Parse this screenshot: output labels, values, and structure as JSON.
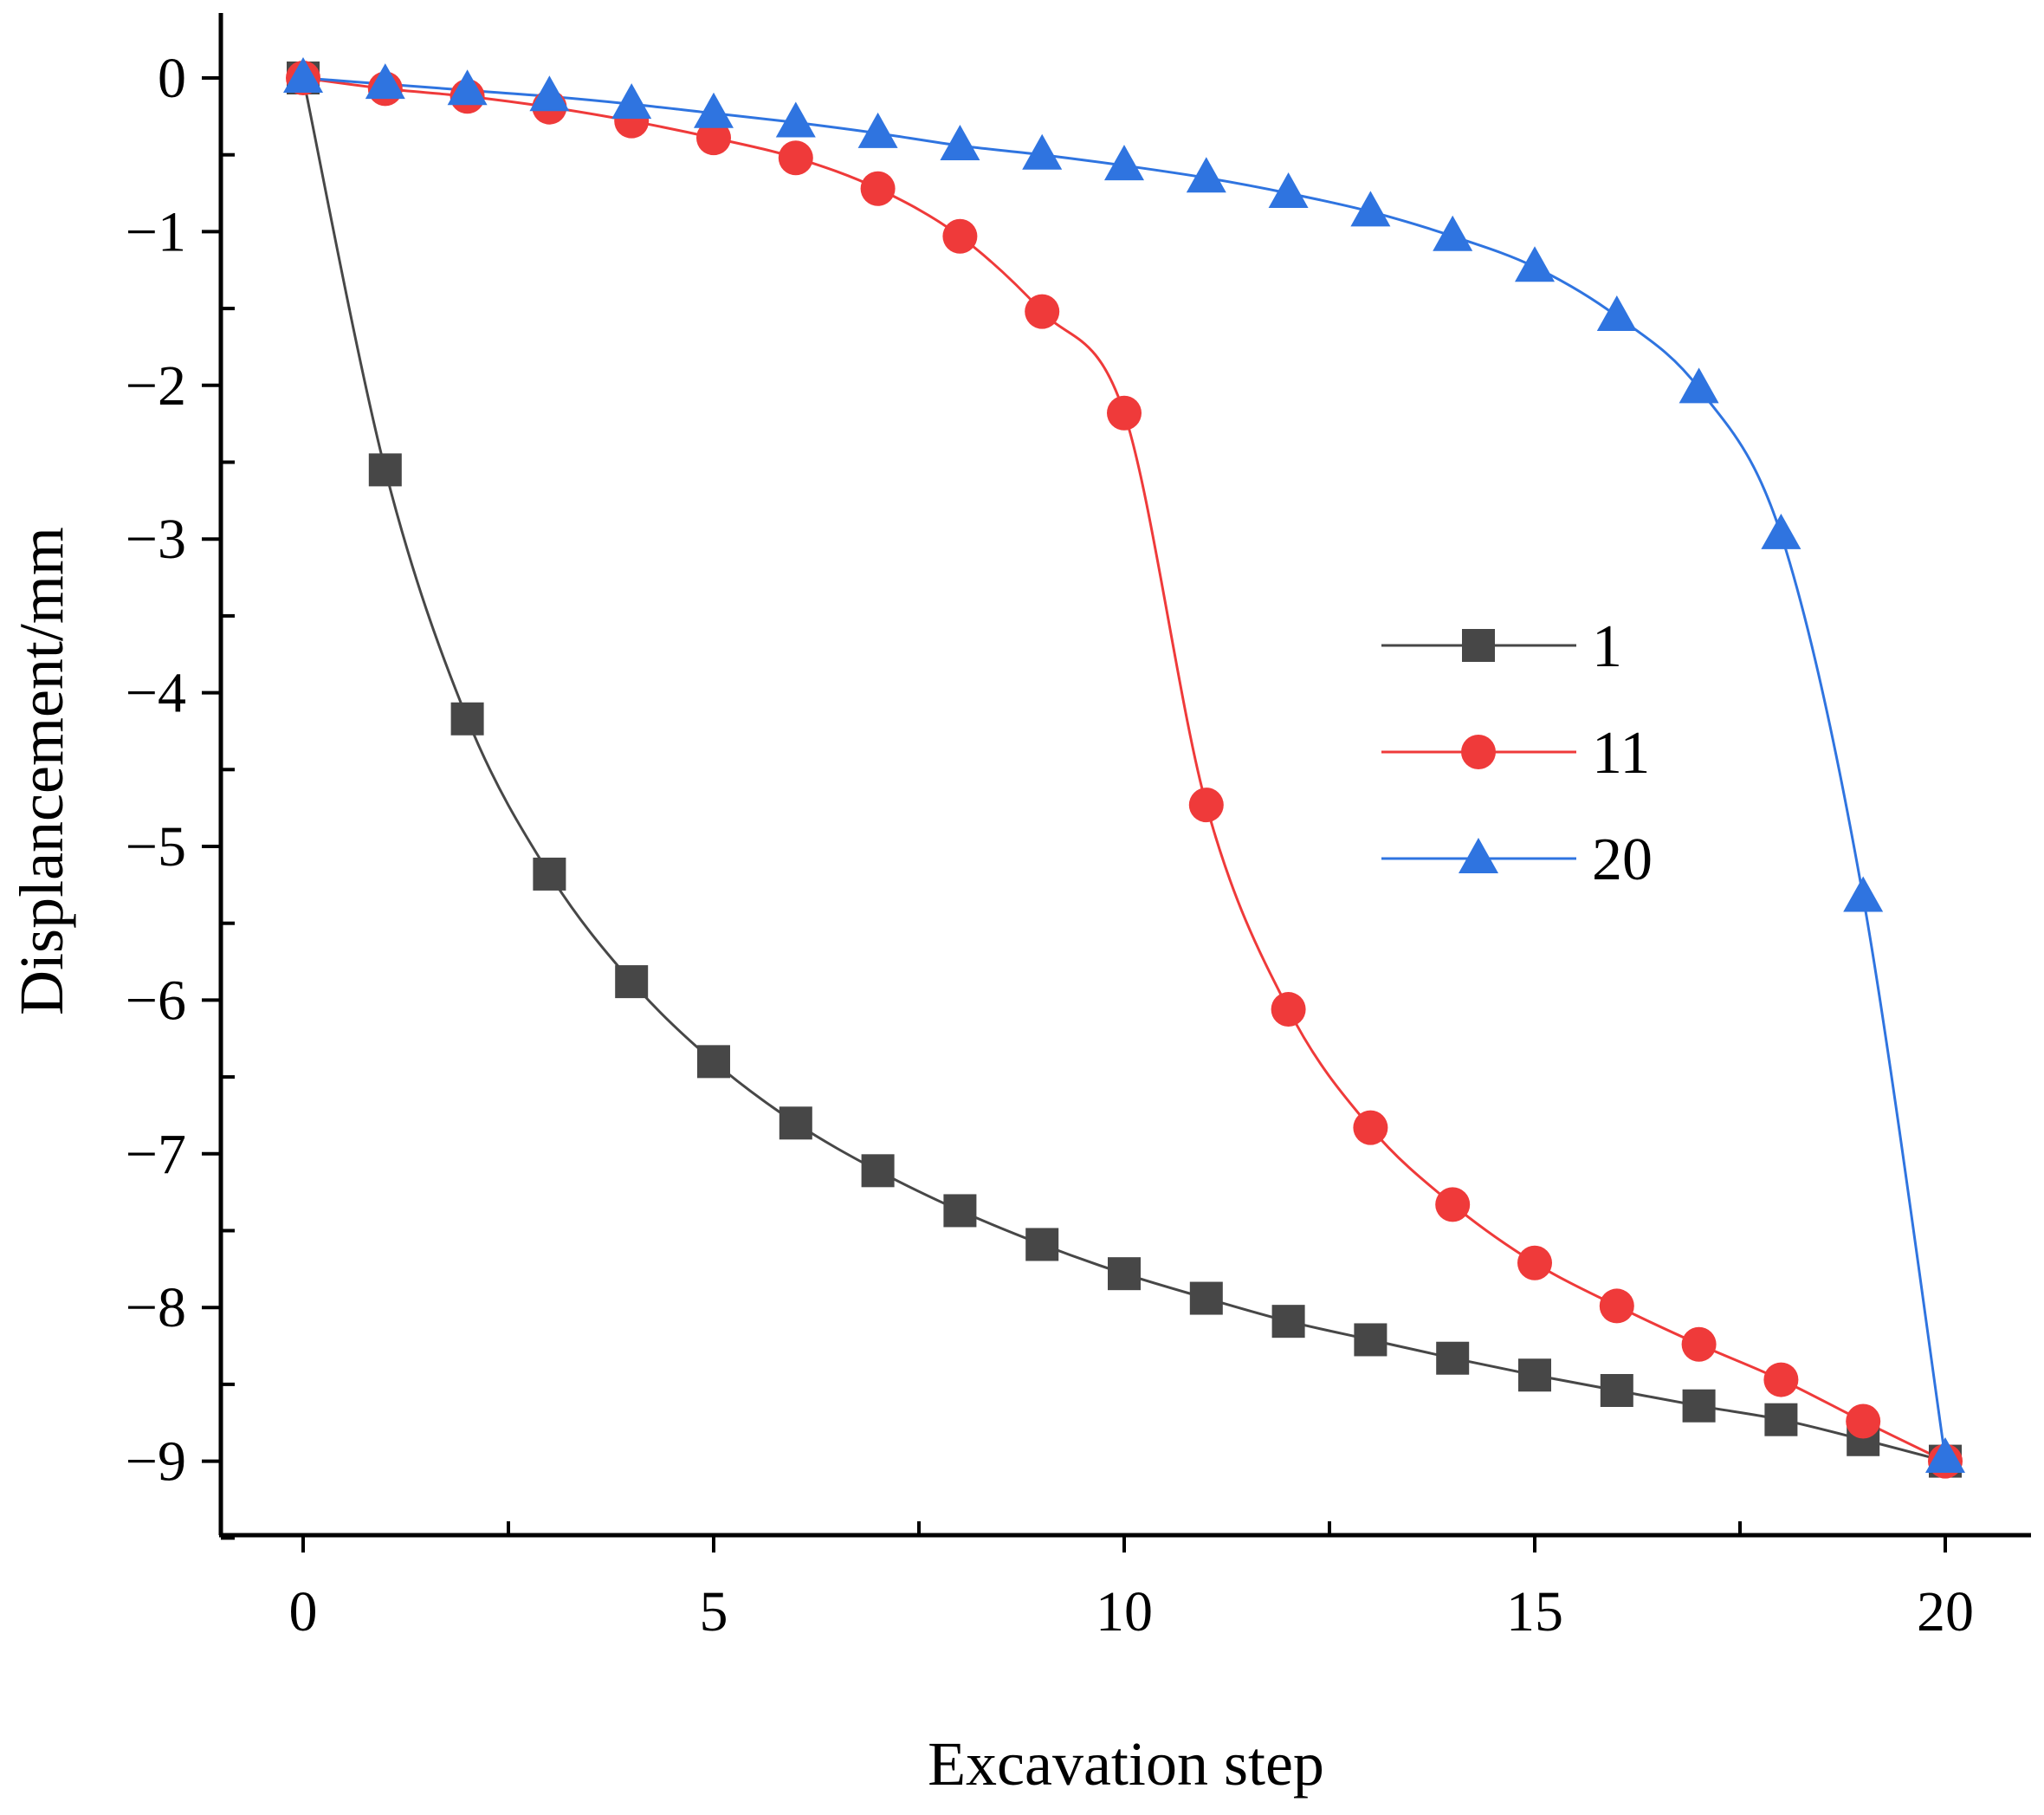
{
  "chart_data": {
    "type": "line",
    "title": "",
    "xlabel": "Excavation step",
    "ylabel": "Displancement/mm",
    "xlim": [
      -1,
      21
    ],
    "ylim": [
      -9.5,
      0.4
    ],
    "xticks": [
      0,
      5,
      10,
      15,
      20
    ],
    "xtick_labels": [
      "0",
      "5",
      "10",
      "15",
      "20"
    ],
    "yticks": [
      0,
      -1,
      -2,
      -3,
      -4,
      -5,
      -6,
      -7,
      -8,
      -9
    ],
    "ytick_labels": [
      "0",
      "−1",
      "−2",
      "−3",
      "−4",
      "−5",
      "−6",
      "−7",
      "−8",
      "−9"
    ],
    "grid": false,
    "legend_position": "right-middle",
    "x": [
      0,
      1,
      2,
      3,
      4,
      5,
      6,
      7,
      8,
      9,
      10,
      11,
      12,
      13,
      14,
      15,
      16,
      17,
      18,
      19,
      20
    ],
    "series": [
      {
        "name": "1",
        "color": "#474747",
        "marker": "square",
        "values": [
          0,
          -2.55,
          -4.17,
          -5.18,
          -5.88,
          -6.4,
          -6.8,
          -7.11,
          -7.37,
          -7.59,
          -7.78,
          -7.94,
          -8.09,
          -8.21,
          -8.33,
          -8.44,
          -8.54,
          -8.64,
          -8.73,
          -8.86,
          -9.0
        ]
      },
      {
        "name": "11",
        "color": "#ef3a3a",
        "marker": "circle",
        "values": [
          0,
          -0.07,
          -0.12,
          -0.19,
          -0.28,
          -0.39,
          -0.52,
          -0.72,
          -1.03,
          -1.52,
          -2.18,
          -4.73,
          -6.06,
          -6.83,
          -7.33,
          -7.71,
          -7.99,
          -8.24,
          -8.47,
          -8.74,
          -9.0
        ]
      },
      {
        "name": "20",
        "color": "#2f74e0",
        "marker": "triangle",
        "values": [
          0,
          -0.04,
          -0.08,
          -0.12,
          -0.17,
          -0.23,
          -0.29,
          -0.36,
          -0.44,
          -0.5,
          -0.57,
          -0.65,
          -0.75,
          -0.87,
          -1.03,
          -1.23,
          -1.55,
          -2.02,
          -2.97,
          -5.33,
          -8.98
        ]
      }
    ]
  }
}
